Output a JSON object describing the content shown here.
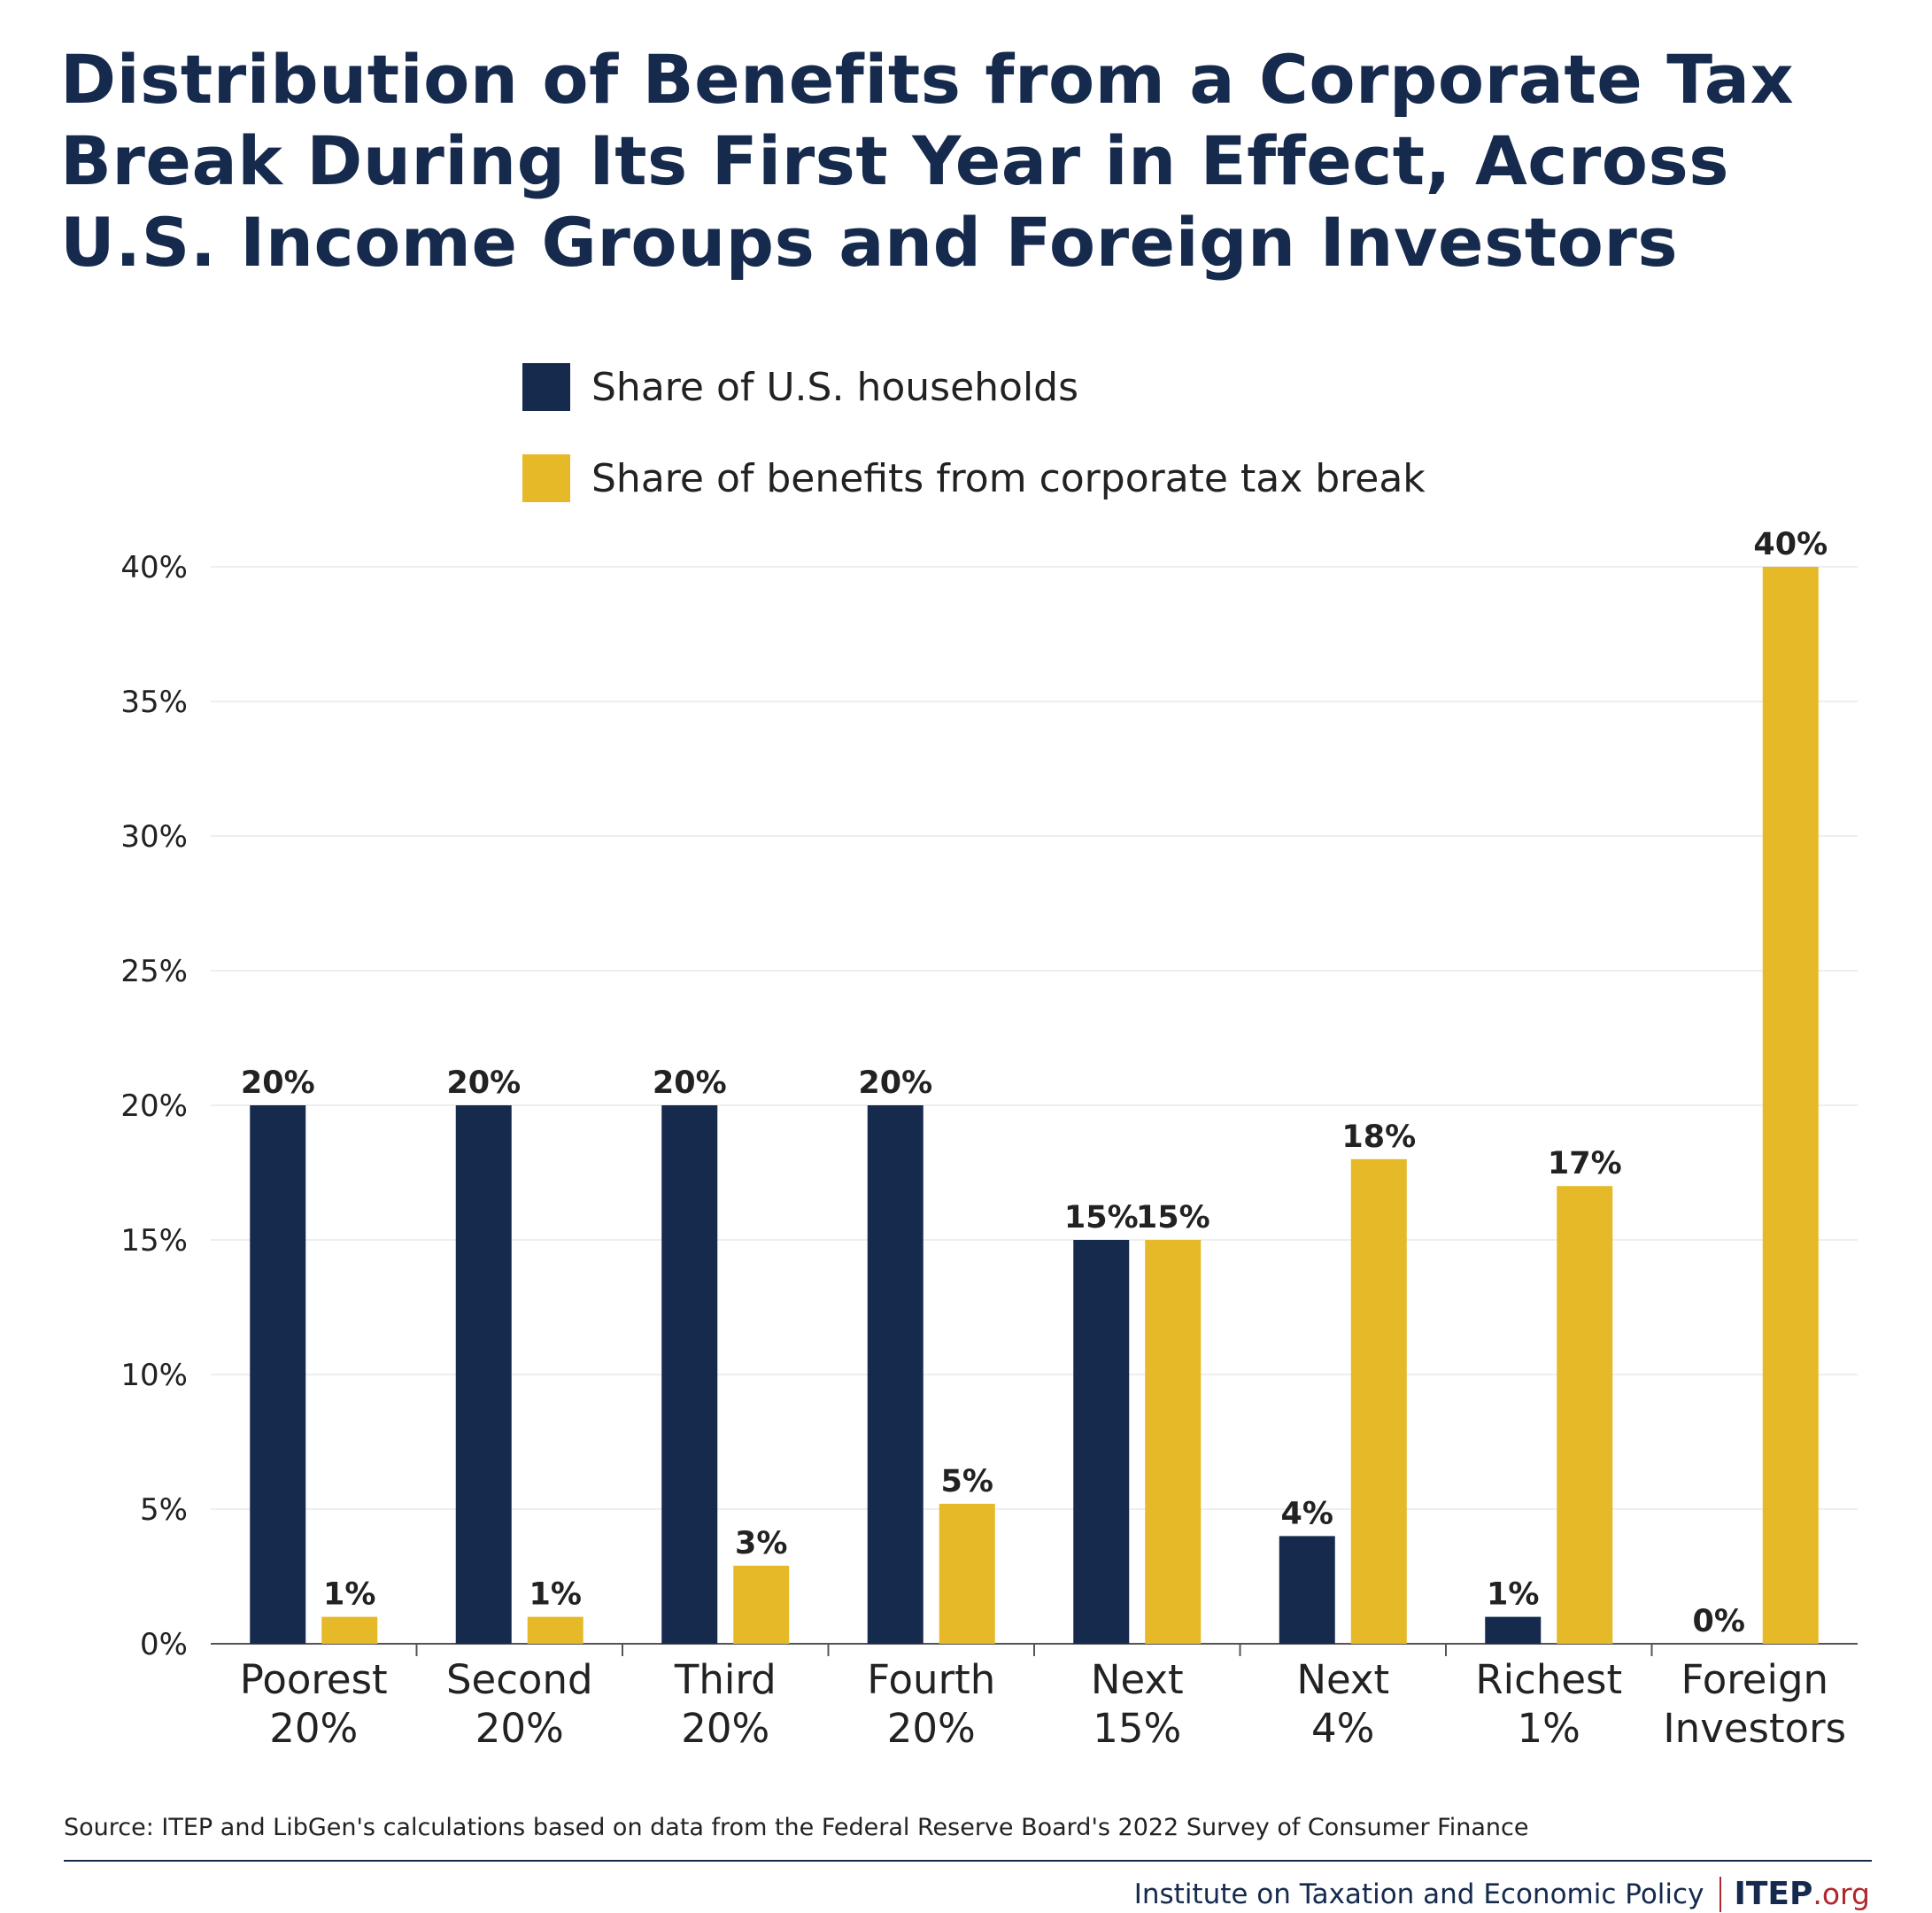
{
  "chart_data": {
    "type": "bar",
    "title": "Distribution of Benefits from a Corporate Tax Break During Its First Year in Effect, Across U.S. Income Groups and Foreign Investors",
    "categories": [
      [
        "Poorest",
        "20%"
      ],
      [
        "Second",
        "20%"
      ],
      [
        "Third",
        "20%"
      ],
      [
        "Fourth",
        "20%"
      ],
      [
        "Next",
        "15%"
      ],
      [
        "Next",
        "4%"
      ],
      [
        "Richest",
        "1%"
      ],
      [
        "Foreign",
        "Investors"
      ]
    ],
    "series": [
      {
        "name": "Share of U.S. households",
        "color": "#152a4d",
        "values": [
          20,
          20,
          20,
          20,
          15,
          4,
          1,
          0
        ],
        "labels": [
          "20%",
          "20%",
          "20%",
          "20%",
          "15%",
          "4%",
          "1%",
          "0%"
        ]
      },
      {
        "name": "Share of benefits from corporate tax break",
        "color": "#e6b928",
        "values": [
          1,
          1,
          2.9,
          5.2,
          15,
          18,
          17,
          40
        ],
        "labels": [
          "1%",
          "1%",
          "3%",
          "5%",
          "15%",
          "18%",
          "17%",
          "40%"
        ]
      }
    ],
    "ylim": [
      0,
      40
    ],
    "yticks": [
      0,
      5,
      10,
      15,
      20,
      25,
      30,
      35,
      40
    ],
    "ytick_labels": [
      "0%",
      "5%",
      "10%",
      "15%",
      "20%",
      "25%",
      "30%",
      "35%",
      "40%"
    ],
    "xlabel": "",
    "ylabel": "",
    "grid": true,
    "legend_position": "top-center"
  },
  "source": "Source: ITEP and LibGen's calculations based on data from the Federal Reserve Board's 2022 Survey of Consumer Finance",
  "footer": {
    "org": "Institute on Taxation and Economic Policy",
    "logo_main": "ITEP",
    "logo_suffix": ".org"
  }
}
